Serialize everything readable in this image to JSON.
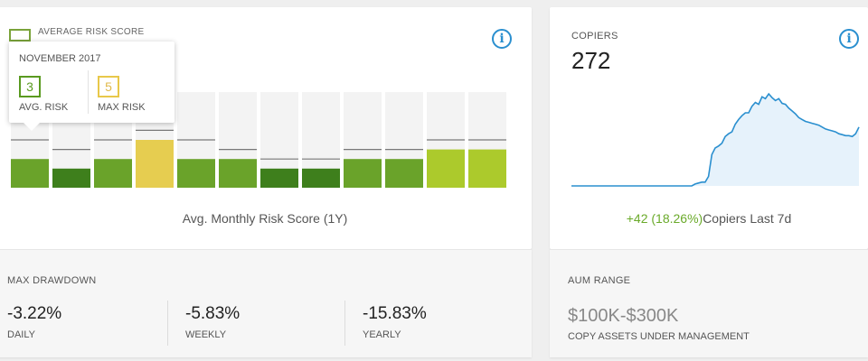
{
  "risk_card": {
    "title": "AVERAGE RISK SCORE",
    "caption": "Avg. Monthly Risk Score (1Y)",
    "info_icon": "info-icon",
    "tooltip": {
      "month": "NOVEMBER 2017",
      "avg_value": "3",
      "avg_label": "AVG. RISK",
      "max_value": "5",
      "max_label": "MAX RISK"
    }
  },
  "chart_data": {
    "type": "bar",
    "title": "Avg. Monthly Risk Score (1Y)",
    "categories": [
      "",
      "",
      "",
      "",
      "",
      "",
      "",
      "",
      "",
      "",
      "",
      ""
    ],
    "series": [
      {
        "values": [
          3,
          2,
          3,
          5,
          3,
          3,
          2,
          2,
          3,
          3,
          4,
          4
        ]
      },
      {
        "values": [
          5,
          4,
          5,
          6,
          5,
          4,
          3,
          3,
          4,
          4,
          5,
          5
        ]
      }
    ],
    "ylim": [
      0,
      10
    ],
    "colors": {
      "1": "#3e7f1c",
      "2": "#3e7f1c",
      "3": "#6aa32a",
      "4": "#acca2c",
      "5": "#e6cd50",
      "6": "#e6cd50",
      "track": "#f3f3f3",
      "max_line": "#777777"
    }
  },
  "copiers_card": {
    "title": "COPIERS",
    "value": "272",
    "change": "+42 (18.26%)",
    "change_label": "Copiers Last 7d",
    "info_icon": "info-icon",
    "sparkline": [
      0,
      0,
      0,
      0,
      0,
      0,
      0,
      0,
      0,
      0,
      0,
      0,
      0,
      0,
      0,
      0,
      0,
      0,
      0,
      0,
      0,
      0,
      0,
      0,
      0,
      0,
      0,
      0,
      0,
      0,
      0,
      0,
      0,
      0,
      0,
      0,
      0,
      2,
      3,
      4,
      4,
      10,
      33,
      40,
      42,
      45,
      52,
      55,
      57,
      65,
      70,
      74,
      77,
      77,
      84,
      88,
      86,
      94,
      92,
      97,
      93,
      90,
      92,
      87,
      86,
      82,
      79,
      76,
      72,
      70,
      68,
      67,
      66,
      65,
      64,
      62,
      60,
      59,
      58,
      57,
      55,
      54,
      53,
      53,
      52,
      55,
      62
    ]
  },
  "drawdown": {
    "title": "MAX DRAWDOWN",
    "items": [
      {
        "value": "-3.22%",
        "label": "DAILY"
      },
      {
        "value": "-5.83%",
        "label": "WEEKLY"
      },
      {
        "value": "-15.83%",
        "label": "YEARLY"
      }
    ]
  },
  "aum": {
    "title": "AUM RANGE",
    "value": "$100K-$300K",
    "label": "COPY ASSETS UNDER MANAGEMENT"
  }
}
